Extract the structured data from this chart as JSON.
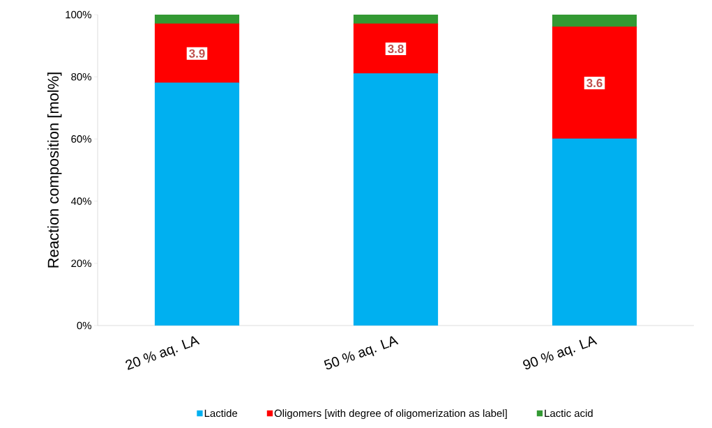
{
  "chart_data": {
    "type": "bar",
    "stacked": true,
    "ylabel": "Reaction composition [mol%]",
    "categories": [
      "20 % aq. LA",
      "50 % aq. LA",
      "90 % aq. LA"
    ],
    "series": [
      {
        "name": "Lactide",
        "color": "#00b0f0",
        "values": [
          78,
          81,
          60
        ]
      },
      {
        "name": "Oligomers [with degree of oligomerization as label]",
        "color": "#ff0000",
        "values": [
          19,
          16,
          36
        ]
      },
      {
        "name": "Lactic acid",
        "color": "#339933",
        "values": [
          3,
          3,
          4
        ]
      }
    ],
    "ylim": [
      0,
      100
    ],
    "yticks": [
      {
        "value": 0,
        "label": "0%"
      },
      {
        "value": 20,
        "label": "20%"
      },
      {
        "value": 40,
        "label": "40%"
      },
      {
        "value": 60,
        "label": "60%"
      },
      {
        "value": 80,
        "label": "80%"
      },
      {
        "value": 100,
        "label": "100%"
      }
    ],
    "annotations": [
      {
        "text": "3.9",
        "x": "20 % aq. LA",
        "y": 87.5
      },
      {
        "text": "3.8",
        "x": "50 % aq. LA",
        "y": 89
      },
      {
        "text": "3.6",
        "x": "90 % aq. LA",
        "y": 78
      }
    ],
    "grid": false,
    "legend": "bottom"
  }
}
